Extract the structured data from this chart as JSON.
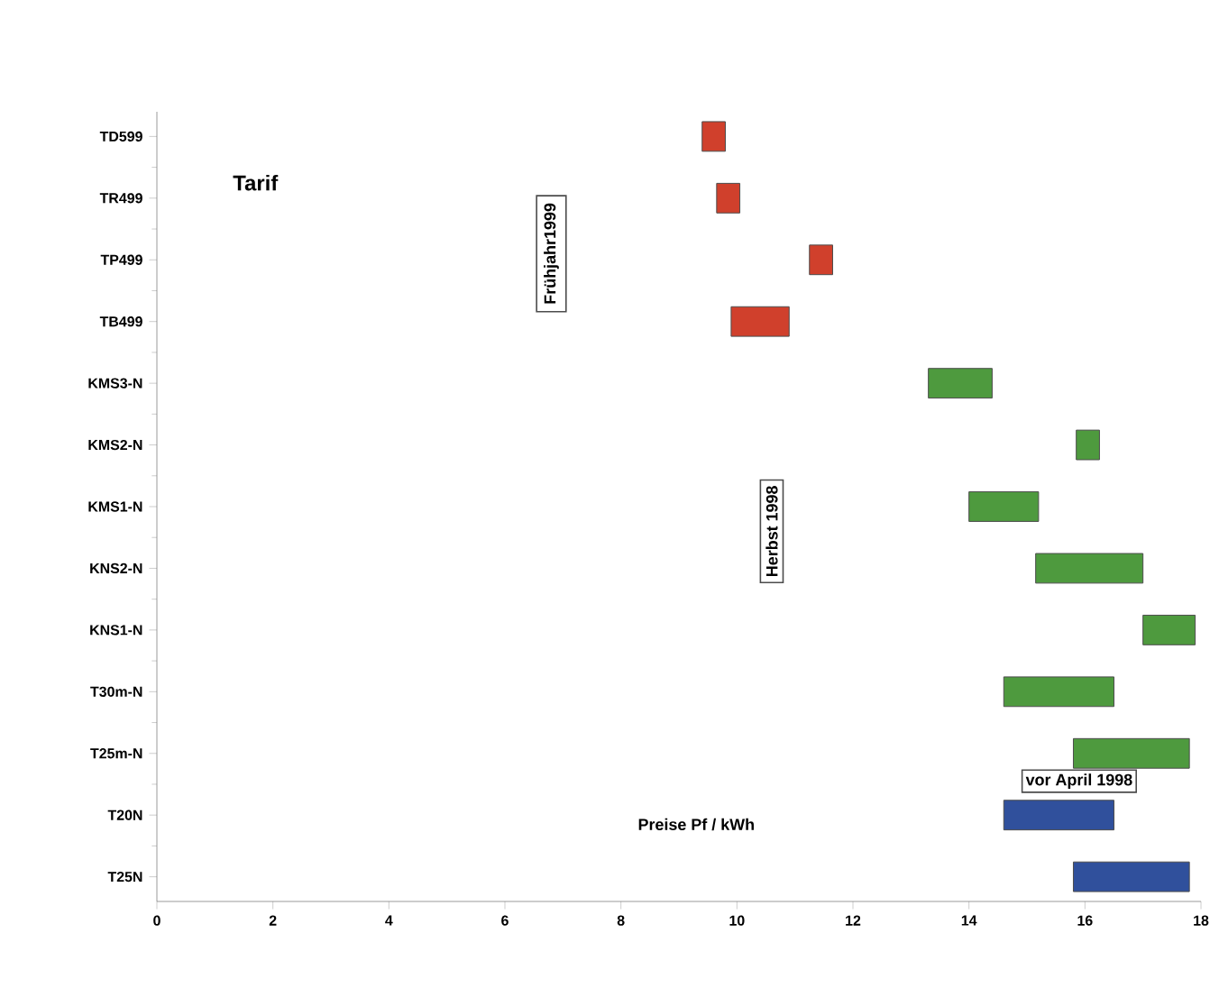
{
  "chart_data": {
    "type": "bar",
    "orientation": "horizontal",
    "ylabel": "Tarif",
    "xlabel": "Preise  Pf / kWh",
    "categories": [
      "TD599",
      "TR499",
      "TP499",
      "TB499",
      "KMS3-N",
      "KMS2-N",
      "KMS1-N",
      "KNS2-N",
      "KNS1-N",
      "T30m-N",
      "T25m-N",
      "T20N",
      "T25N"
    ],
    "base": [
      9.4,
      9.65,
      11.25,
      9.9,
      13.3,
      15.85,
      14.0,
      15.15,
      17.0,
      14.6,
      15.8,
      14.6,
      15.8
    ],
    "values": [
      0.4,
      0.4,
      0.4,
      1.0,
      1.1,
      0.4,
      1.2,
      1.85,
      0.9,
      1.9,
      2.0,
      1.9,
      2.0
    ],
    "colors": [
      "#d0402c",
      "#d0402c",
      "#d0402c",
      "#d0402c",
      "#4e9a3e",
      "#4e9a3e",
      "#4e9a3e",
      "#4e9a3e",
      "#4e9a3e",
      "#4e9a3e",
      "#4e9a3e",
      "#30509c",
      "#30509c"
    ],
    "xlim": [
      0,
      18
    ],
    "xticks": [
      0,
      2,
      4,
      6,
      8,
      10,
      12,
      14,
      16,
      18
    ],
    "annotations": [
      "Frühjahr1999",
      "Herbst 1998",
      "vor April 1998"
    ]
  }
}
